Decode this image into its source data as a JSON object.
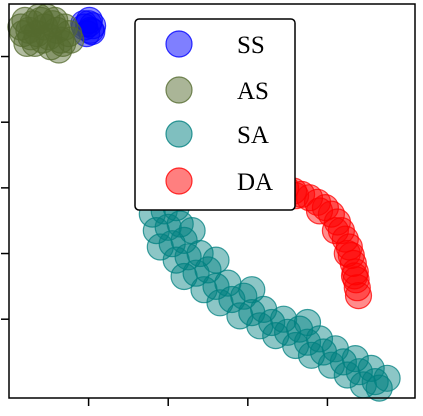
{
  "chart_data": {
    "type": "scatter",
    "title": "",
    "xlabel": "",
    "ylabel": "",
    "xlim": [
      -2.0,
      8.2
    ],
    "ylim": [
      -1.2,
      4.8
    ],
    "grid": false,
    "x_tick_labels_visible": false,
    "y_tick_labels_visible": false,
    "x_ticks": [
      0,
      2,
      4,
      6
    ],
    "y_ticks": [
      0,
      1,
      2,
      3,
      4
    ],
    "legend": {
      "placement": "top-center",
      "entries": [
        {
          "label": "SS",
          "color": "#0000ff"
        },
        {
          "label": "AS",
          "color": "#556b2f"
        },
        {
          "label": "SA",
          "color": "#008080"
        },
        {
          "label": "DA",
          "color": "#ff0000"
        }
      ]
    },
    "series": [
      {
        "name": "SS",
        "color": "#0000ff",
        "points": [
          [
            -0.1,
            4.45
          ],
          [
            0.0,
            4.5
          ],
          [
            0.05,
            4.4
          ],
          [
            -0.05,
            4.35
          ],
          [
            0.1,
            4.47
          ],
          [
            0.02,
            4.55
          ],
          [
            -0.12,
            4.5
          ],
          [
            0.08,
            4.38
          ]
        ]
      },
      {
        "name": "AS",
        "color": "#556b2f",
        "points": [
          [
            -1.7,
            4.45
          ],
          [
            -1.6,
            4.55
          ],
          [
            -1.5,
            4.4
          ],
          [
            -1.4,
            4.5
          ],
          [
            -1.3,
            4.35
          ],
          [
            -1.2,
            4.55
          ],
          [
            -1.1,
            4.45
          ],
          [
            -1.0,
            4.3
          ],
          [
            -0.9,
            4.5
          ],
          [
            -0.8,
            4.4
          ],
          [
            -0.7,
            4.25
          ],
          [
            -0.6,
            4.45
          ],
          [
            -0.5,
            4.35
          ],
          [
            -1.55,
            4.2
          ],
          [
            -1.35,
            4.2
          ],
          [
            -1.15,
            4.25
          ],
          [
            -0.95,
            4.15
          ],
          [
            -0.75,
            4.1
          ],
          [
            -1.25,
            4.6
          ],
          [
            -1.05,
            4.6
          ],
          [
            -0.85,
            4.55
          ],
          [
            -1.45,
            4.3
          ],
          [
            -0.65,
            4.2
          ],
          [
            -0.45,
            4.25
          ],
          [
            -1.65,
            4.35
          ]
        ]
      },
      {
        "name": "SA",
        "color": "#008080",
        "points": [
          [
            1.6,
            1.6
          ],
          [
            1.9,
            1.65
          ],
          [
            2.2,
            1.7
          ],
          [
            1.7,
            1.35
          ],
          [
            2.0,
            1.4
          ],
          [
            2.3,
            1.45
          ],
          [
            1.8,
            1.1
          ],
          [
            2.1,
            1.15
          ],
          [
            2.4,
            1.2
          ],
          [
            2.6,
            1.35
          ],
          [
            2.2,
            0.9
          ],
          [
            2.5,
            0.95
          ],
          [
            2.8,
            1.0
          ],
          [
            2.4,
            0.65
          ],
          [
            2.7,
            0.7
          ],
          [
            3.0,
            0.75
          ],
          [
            3.2,
            0.9
          ],
          [
            2.9,
            0.45
          ],
          [
            3.2,
            0.5
          ],
          [
            3.5,
            0.55
          ],
          [
            3.3,
            0.25
          ],
          [
            3.6,
            0.3
          ],
          [
            3.9,
            0.35
          ],
          [
            4.1,
            0.45
          ],
          [
            3.8,
            0.05
          ],
          [
            4.1,
            0.1
          ],
          [
            4.4,
            0.15
          ],
          [
            4.3,
            -0.1
          ],
          [
            4.6,
            -0.05
          ],
          [
            4.9,
            0.0
          ],
          [
            4.7,
            -0.25
          ],
          [
            5.0,
            -0.2
          ],
          [
            5.3,
            -0.15
          ],
          [
            5.5,
            -0.05
          ],
          [
            5.2,
            -0.4
          ],
          [
            5.5,
            -0.35
          ],
          [
            5.8,
            -0.3
          ],
          [
            5.6,
            -0.55
          ],
          [
            5.9,
            -0.5
          ],
          [
            6.2,
            -0.45
          ],
          [
            6.1,
            -0.7
          ],
          [
            6.4,
            -0.65
          ],
          [
            6.7,
            -0.6
          ],
          [
            6.5,
            -0.85
          ],
          [
            6.8,
            -0.8
          ],
          [
            7.1,
            -0.75
          ],
          [
            6.9,
            -1.0
          ],
          [
            7.2,
            -0.95
          ],
          [
            7.5,
            -0.9
          ],
          [
            7.3,
            -1.05
          ]
        ]
      },
      {
        "name": "DA",
        "color": "#ff0000",
        "points": [
          [
            3.95,
            2.25
          ],
          [
            4.15,
            2.2
          ],
          [
            4.35,
            2.15
          ],
          [
            4.55,
            2.1
          ],
          [
            4.75,
            2.05
          ],
          [
            4.95,
            2.0
          ],
          [
            5.15,
            1.95
          ],
          [
            5.35,
            1.9
          ],
          [
            5.55,
            1.85
          ],
          [
            5.75,
            1.78
          ],
          [
            5.95,
            1.7
          ],
          [
            6.1,
            1.6
          ],
          [
            6.25,
            1.48
          ],
          [
            6.35,
            1.35
          ],
          [
            6.45,
            1.22
          ],
          [
            6.55,
            1.1
          ],
          [
            6.6,
            0.97
          ],
          [
            6.65,
            0.85
          ],
          [
            6.7,
            0.72
          ],
          [
            6.72,
            0.6
          ],
          [
            6.75,
            0.48
          ],
          [
            6.78,
            0.36
          ],
          [
            4.05,
            2.15
          ],
          [
            4.6,
            2.0
          ],
          [
            5.2,
            1.88
          ],
          [
            5.8,
            1.65
          ],
          [
            6.2,
            1.35
          ],
          [
            6.5,
            1.0
          ],
          [
            6.68,
            0.66
          ]
        ]
      }
    ]
  }
}
